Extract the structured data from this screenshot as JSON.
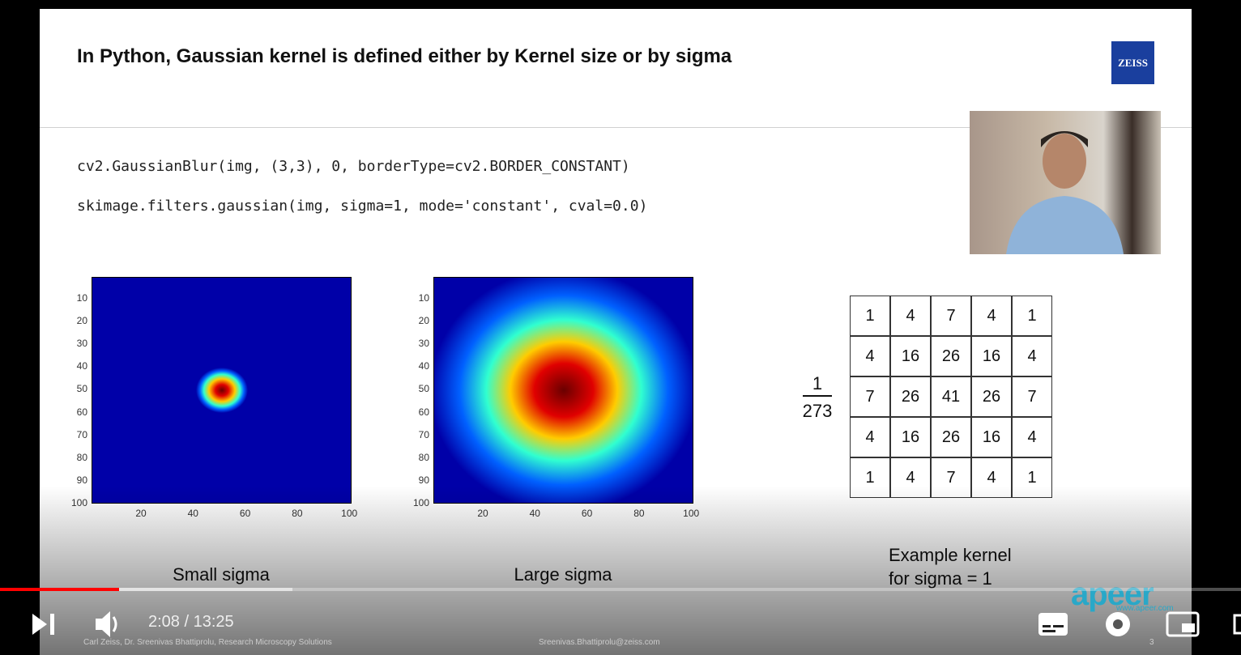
{
  "slide": {
    "title": "In Python, Gaussian kernel is defined either by Kernel size or by sigma",
    "code": [
      "cv2.GaussianBlur(img, (3,3), 0, borderType=cv2.BORDER_CONSTANT)",
      "skimage.filters.gaussian(img, sigma=1, mode='constant', cval=0.0)"
    ],
    "plots": [
      {
        "label": "Small sigma",
        "yticks": [
          10,
          20,
          30,
          40,
          50,
          60,
          70,
          80,
          90,
          100
        ],
        "xticks": [
          20,
          40,
          60,
          80,
          100
        ]
      },
      {
        "label": "Large sigma",
        "yticks": [
          10,
          20,
          30,
          40,
          50,
          60,
          70,
          80,
          90,
          100
        ],
        "xticks": [
          20,
          40,
          60,
          80,
          100
        ]
      }
    ],
    "kernel": {
      "numerator": 1,
      "denominator": 273,
      "rows": [
        [
          1,
          4,
          7,
          4,
          1
        ],
        [
          4,
          16,
          26,
          16,
          4
        ],
        [
          7,
          26,
          41,
          26,
          7
        ],
        [
          4,
          16,
          26,
          16,
          4
        ],
        [
          1,
          4,
          7,
          4,
          1
        ]
      ],
      "caption": [
        "Example kernel",
        "for sigma = 1"
      ]
    },
    "logo": "ZEISS",
    "apeer": {
      "name": "apeer",
      "url": "www.apeer.com"
    },
    "footer": {
      "left": "Carl Zeiss, Dr. Sreenivas Bhattiprolu, Research Microscopy Solutions",
      "center": "Sreenivas.Bhattiprolu@zeiss.com",
      "page": "3"
    }
  },
  "player": {
    "time": "2:08 / 13:25"
  }
}
